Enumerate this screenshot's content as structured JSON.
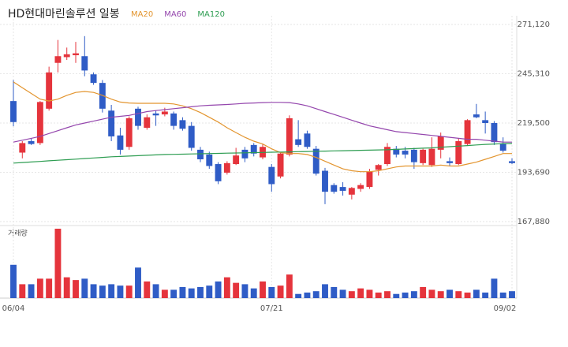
{
  "chart_data": {
    "type": "candlestick",
    "title": "HD현대마린솔루션 일봉",
    "up_color": "#e5343c",
    "down_color": "#2f5cc6",
    "categories": [
      "06/04",
      null,
      null,
      null,
      null,
      null,
      null,
      null,
      null,
      null,
      null,
      null,
      null,
      null,
      null,
      null,
      null,
      null,
      null,
      null,
      null,
      null,
      null,
      null,
      null,
      null,
      null,
      null,
      null,
      "07/21",
      null,
      null,
      null,
      null,
      null,
      null,
      null,
      null,
      null,
      null,
      null,
      null,
      null,
      null,
      null,
      null,
      null,
      null,
      null,
      null,
      null,
      null,
      null,
      null,
      null,
      null,
      "09/02"
    ],
    "open": [
      231000,
      204000,
      210000,
      209000,
      227000,
      251000,
      254000,
      255000,
      254500,
      245000,
      240500,
      226000,
      213000,
      207000,
      227000,
      217000,
      224500,
      224000,
      224500,
      221000,
      218000,
      205500,
      203000,
      198000,
      193500,
      198000,
      205500,
      208000,
      201500,
      196500,
      191500,
      203000,
      211000,
      214000,
      206000,
      194500,
      187000,
      186000,
      182000,
      185000,
      186000,
      195000,
      198000,
      206000,
      205000,
      205500,
      198500,
      197500,
      205500,
      199500,
      198000,
      208500,
      224000,
      221000,
      219500,
      208500,
      199500
    ],
    "high": [
      242000,
      210000,
      211500,
      231000,
      249000,
      263000,
      259000,
      262000,
      265000,
      246000,
      242000,
      229000,
      217000,
      223000,
      228000,
      224000,
      226000,
      227500,
      225500,
      222500,
      220000,
      207000,
      204500,
      199000,
      199500,
      206500,
      207000,
      209000,
      208500,
      198000,
      204000,
      223500,
      221000,
      215500,
      207500,
      196000,
      188000,
      188500,
      186000,
      188000,
      195500,
      198000,
      209000,
      207500,
      207000,
      206500,
      206000,
      212000,
      214500,
      201500,
      211500,
      221500,
      229500,
      225500,
      220500,
      212000,
      201000
    ],
    "low": [
      217800,
      201000,
      208000,
      208000,
      226000,
      246000,
      252500,
      251000,
      244000,
      239500,
      225000,
      210000,
      203000,
      205500,
      216000,
      216000,
      218000,
      223000,
      216000,
      215500,
      205000,
      199000,
      195500,
      187500,
      192500,
      197500,
      199000,
      202000,
      200500,
      183500,
      190500,
      202000,
      207000,
      206000,
      192000,
      177000,
      182500,
      181500,
      179500,
      183500,
      185000,
      192000,
      197000,
      201500,
      201000,
      195500,
      197500,
      196500,
      201000,
      197000,
      197500,
      207500,
      222000,
      214000,
      208000,
      204000,
      198000
    ],
    "close": [
      220000,
      209000,
      208500,
      230500,
      246000,
      254500,
      255500,
      256000,
      247000,
      240500,
      227000,
      212500,
      205500,
      222000,
      218000,
      222500,
      223500,
      225500,
      218000,
      216500,
      206500,
      200500,
      197000,
      189000,
      198500,
      202500,
      201000,
      203500,
      207000,
      187500,
      203500,
      222000,
      208000,
      207000,
      193000,
      183500,
      183500,
      184000,
      185500,
      187000,
      194000,
      197500,
      207000,
      203000,
      203000,
      199000,
      205500,
      206000,
      212500,
      198500,
      210000,
      221000,
      222500,
      219500,
      209500,
      205000,
      198500
    ],
    "series": [
      {
        "name": "MA20",
        "color": "#e3952f",
        "values": [
          241000,
          238000,
          235000,
          232000,
          231000,
          232000,
          234000,
          235500,
          236000,
          235500,
          234000,
          232000,
          230500,
          230000,
          229800,
          229800,
          229800,
          229800,
          229500,
          228500,
          227000,
          225000,
          222500,
          220000,
          217000,
          214500,
          212000,
          210000,
          208500,
          206000,
          204000,
          203500,
          203500,
          203000,
          201500,
          199500,
          197500,
          195500,
          194500,
          194000,
          194000,
          194500,
          195500,
          196500,
          197000,
          197000,
          197000,
          197000,
          197500,
          197000,
          197000,
          198000,
          199000,
          200500,
          202000,
          203500,
          203500
        ]
      },
      {
        "name": "MA60",
        "color": "#9446ad",
        "values": [
          209500,
          210500,
          211500,
          212500,
          214000,
          215500,
          217000,
          218500,
          219500,
          220500,
          221500,
          222500,
          223000,
          223500,
          224500,
          225500,
          226000,
          226500,
          227000,
          227500,
          228000,
          228500,
          228800,
          229000,
          229200,
          229500,
          229800,
          230000,
          230200,
          230300,
          230300,
          230200,
          229500,
          228500,
          227000,
          225500,
          224000,
          222500,
          221000,
          219500,
          218000,
          217000,
          216000,
          215000,
          214500,
          214000,
          213500,
          213000,
          212500,
          212000,
          211500,
          211000,
          211000,
          210500,
          210000,
          209500,
          209500
        ]
      },
      {
        "name": "MA120",
        "color": "#2e9d52",
        "values": [
          198500,
          198800,
          199100,
          199400,
          199700,
          200000,
          200300,
          200600,
          200900,
          201200,
          201500,
          201800,
          202000,
          202200,
          202400,
          202600,
          202800,
          203000,
          203100,
          203200,
          203300,
          203400,
          203500,
          203600,
          203700,
          203800,
          203900,
          204000,
          204100,
          204200,
          204300,
          204400,
          204500,
          204600,
          204700,
          204800,
          204900,
          205000,
          205100,
          205200,
          205300,
          205400,
          205500,
          205700,
          205900,
          206100,
          206300,
          206500,
          206800,
          207100,
          207400,
          207700,
          208000,
          208300,
          208500,
          208700,
          208800
        ]
      }
    ],
    "ylim": [
      166220,
      275660
    ],
    "yticks": [
      {
        "value": 271120,
        "label": "271,120"
      },
      {
        "value": 245310,
        "label": "245,310"
      },
      {
        "value": 219500,
        "label": "219,500"
      },
      {
        "value": 193690,
        "label": "193,690"
      },
      {
        "value": 167880,
        "label": "167,880"
      }
    ],
    "grid": true,
    "volume": {
      "label": "거래량",
      "ylim": [
        0,
        100
      ],
      "values": [
        48,
        20,
        20,
        28,
        28,
        100,
        30,
        26,
        28,
        20,
        18,
        20,
        18,
        18,
        44,
        24,
        20,
        12,
        12,
        16,
        14,
        16,
        18,
        24,
        30,
        22,
        20,
        14,
        24,
        16,
        18,
        34,
        6,
        8,
        10,
        20,
        16,
        12,
        10,
        14,
        12,
        8,
        10,
        6,
        8,
        10,
        16,
        12,
        10,
        12,
        10,
        8,
        12,
        8,
        28,
        8,
        10
      ]
    }
  }
}
